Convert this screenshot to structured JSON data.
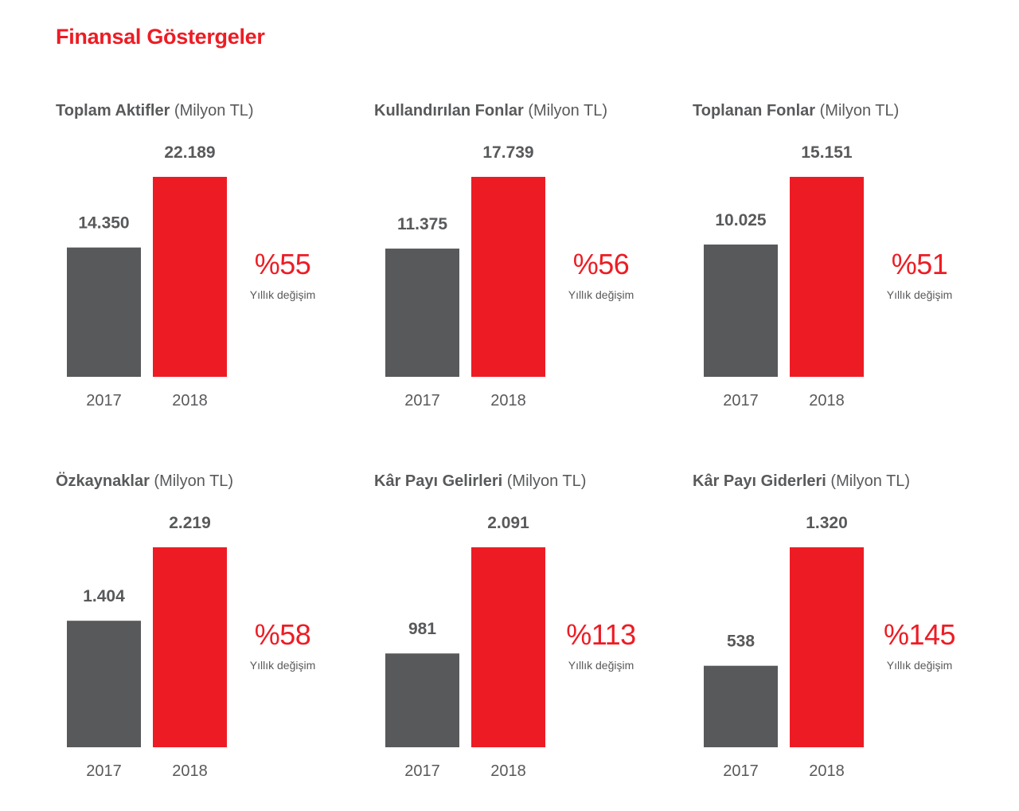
{
  "page_title": "Finansal Göstergeler",
  "colors": {
    "accent": "#ed1c24",
    "bar_previous": "#58595b",
    "text": "#58595b"
  },
  "chart_data": [
    {
      "type": "bar",
      "title": "Toplam Aktifler",
      "unit": "(Milyon TL)",
      "categories": [
        "2017",
        "2018"
      ],
      "values": [
        14350,
        22189
      ],
      "value_labels": [
        "14.350",
        "22.189"
      ],
      "change": "%55",
      "change_label": "Yıllık değişim"
    },
    {
      "type": "bar",
      "title": "Kullandırılan Fonlar",
      "unit": "(Milyon TL)",
      "categories": [
        "2017",
        "2018"
      ],
      "values": [
        11375,
        17739
      ],
      "value_labels": [
        "11.375",
        "17.739"
      ],
      "change": "%56",
      "change_label": "Yıllık değişim"
    },
    {
      "type": "bar",
      "title": "Toplanan Fonlar",
      "unit": "(Milyon TL)",
      "categories": [
        "2017",
        "2018"
      ],
      "values": [
        10025,
        15151
      ],
      "value_labels": [
        "10.025",
        "15.151"
      ],
      "change": "%51",
      "change_label": "Yıllık değişim"
    },
    {
      "type": "bar",
      "title": "Özkaynaklar",
      "unit": "(Milyon TL)",
      "categories": [
        "2017",
        "2018"
      ],
      "values": [
        1404,
        2219
      ],
      "value_labels": [
        "1.404",
        "2.219"
      ],
      "change": "%58",
      "change_label": "Yıllık değişim"
    },
    {
      "type": "bar",
      "title": "Kâr Payı Gelirleri",
      "unit": "(Milyon TL)",
      "categories": [
        "2017",
        "2018"
      ],
      "values": [
        981,
        2091
      ],
      "value_labels": [
        "981",
        "2.091"
      ],
      "change": "%113",
      "change_label": "Yıllık değişim"
    },
    {
      "type": "bar",
      "title": "Kâr Payı Giderleri",
      "unit": "(Milyon TL)",
      "categories": [
        "2017",
        "2018"
      ],
      "values": [
        538,
        1320
      ],
      "value_labels": [
        "538",
        "1.320"
      ],
      "change": "%145",
      "change_label": "Yıllık değişim"
    }
  ]
}
